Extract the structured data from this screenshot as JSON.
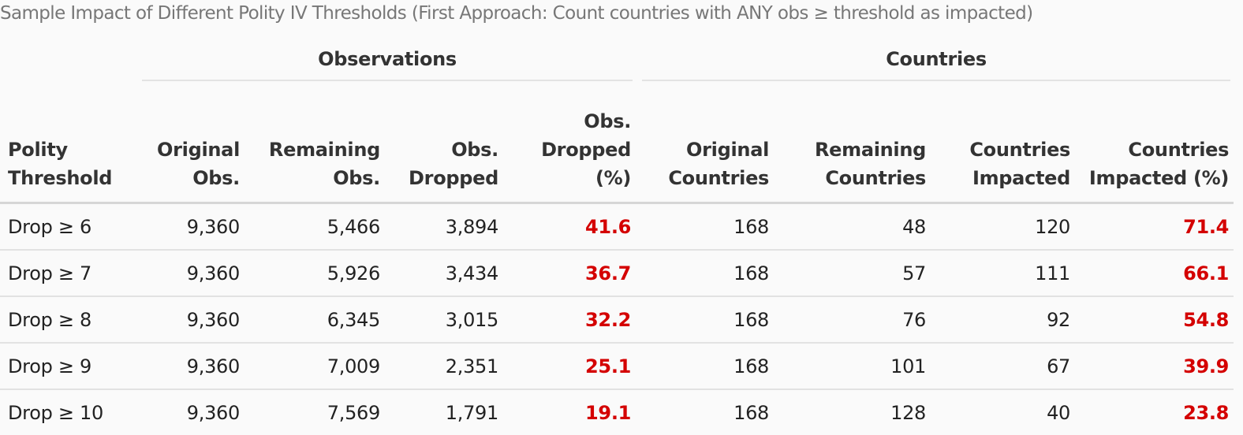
{
  "caption": "Sample Impact of Different Polity IV Thresholds (First Approach: Count countries with ANY obs ≥ threshold as impacted)",
  "spanners": {
    "observations": "Observations",
    "countries": "Countries"
  },
  "columns": [
    [
      "Polity",
      "Threshold"
    ],
    [
      "Original",
      "Obs."
    ],
    [
      "Remaining",
      "Obs."
    ],
    [
      "Obs.",
      "Dropped"
    ],
    [
      "Obs.",
      "Dropped",
      "(%)"
    ],
    [
      "Original",
      "Countries"
    ],
    [
      "Remaining",
      "Countries"
    ],
    [
      "Countries",
      "Impacted"
    ],
    [
      "Countries",
      "Impacted (%)"
    ]
  ],
  "highlight_color": "#d40000",
  "rows": [
    [
      "Drop ≥ 6",
      "9,360",
      "5,466",
      "3,894",
      "41.6",
      "168",
      "48",
      "120",
      "71.4"
    ],
    [
      "Drop ≥ 7",
      "9,360",
      "5,926",
      "3,434",
      "36.7",
      "168",
      "57",
      "111",
      "66.1"
    ],
    [
      "Drop ≥ 8",
      "9,360",
      "6,345",
      "3,015",
      "32.2",
      "168",
      "76",
      "92",
      "54.8"
    ],
    [
      "Drop ≥ 9",
      "9,360",
      "7,009",
      "2,351",
      "25.1",
      "168",
      "101",
      "67",
      "39.9"
    ],
    [
      "Drop ≥ 10",
      "9,360",
      "7,569",
      "1,791",
      "19.1",
      "168",
      "128",
      "40",
      "23.8"
    ]
  ]
}
